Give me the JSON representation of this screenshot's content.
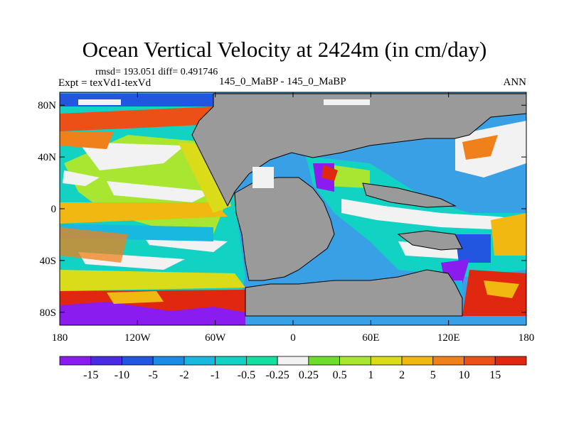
{
  "header": {
    "title": "Ocean Vertical Velocity at 2424m (in cm/day)",
    "stats": "rmsd= 193.051 diff= 0.491746",
    "experiment": "Expt = texVd1-texVd",
    "cases": "145_0_MaBP - 145_0_MaBP",
    "season": "ANN"
  },
  "axes": {
    "lat_ticks": [
      {
        "value": 80,
        "label": "80N"
      },
      {
        "value": 40,
        "label": "40N"
      },
      {
        "value": 0,
        "label": "0"
      },
      {
        "value": -40,
        "label": "40S"
      },
      {
        "value": -80,
        "label": "80S"
      }
    ],
    "lon_ticks": [
      {
        "value": -180,
        "label": "180"
      },
      {
        "value": -120,
        "label": "120W"
      },
      {
        "value": -60,
        "label": "60W"
      },
      {
        "value": 0,
        "label": "0"
      },
      {
        "value": 60,
        "label": "60E"
      },
      {
        "value": 120,
        "label": "120E"
      },
      {
        "value": 180,
        "label": "180"
      }
    ]
  },
  "colorbar": {
    "labels": [
      "-15",
      "-10",
      "-5",
      "-2",
      "-1",
      "-0.5",
      "-0.25",
      "0.25",
      "0.5",
      "1",
      "2",
      "5",
      "10",
      "15"
    ],
    "colors": [
      "#8a1cf0",
      "#4a2be3",
      "#2356e0",
      "#1a8ce8",
      "#18b8e0",
      "#12d2c4",
      "#12dfa0",
      "#f2f2f2",
      "#6edc2a",
      "#a8e632",
      "#dadc1a",
      "#f0b810",
      "#f0801a",
      "#ec5016",
      "#e02810"
    ]
  },
  "land_color": "#9a9a9a"
}
